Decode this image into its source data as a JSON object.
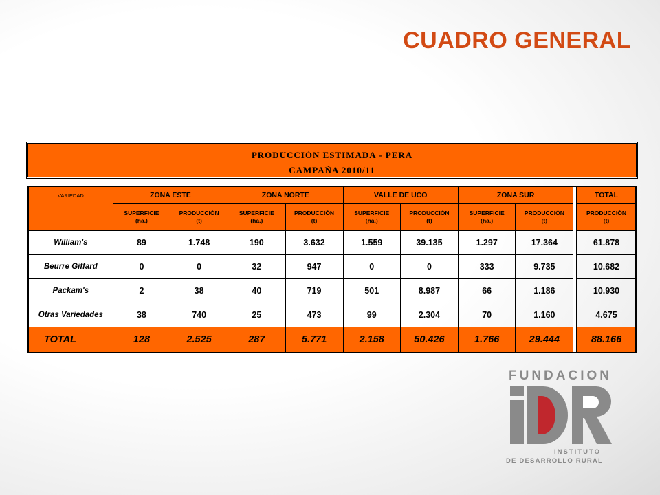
{
  "title": "CUADRO GENERAL",
  "banner": {
    "line1": "PRODUCCIÓN ESTIMADA - PERA",
    "line2": "CAMPAÑA 2010/11"
  },
  "table": {
    "variety_header": "VARIEDAD",
    "zones": [
      "ZONA ESTE",
      "ZONA NORTE",
      "VALLE DE UCO",
      "ZONA SUR"
    ],
    "total_header": "TOTAL",
    "sub_surface": [
      "SUPERFICIE",
      "(ha.)"
    ],
    "sub_production": [
      "PRODUCCIÓN",
      "(t)"
    ],
    "rows": [
      {
        "label": "William's",
        "values": [
          "89",
          "1.748",
          "190",
          "3.632",
          "1.559",
          "39.135",
          "1.297",
          "17.364"
        ],
        "total": "61.878"
      },
      {
        "label": "Beurre Giffard",
        "values": [
          "0",
          "0",
          "32",
          "947",
          "0",
          "0",
          "333",
          "9.735"
        ],
        "total": "10.682"
      },
      {
        "label": "Packam's",
        "values": [
          "2",
          "38",
          "40",
          "719",
          "501",
          "8.987",
          "66",
          "1.186"
        ],
        "total": "10.930"
      },
      {
        "label": "Otras Variedades",
        "values": [
          "38",
          "740",
          "25",
          "473",
          "99",
          "2.304",
          "70",
          "1.160"
        ],
        "total": "4.675"
      }
    ],
    "total_row": {
      "label": "TOTAL",
      "values": [
        "128",
        "2.525",
        "287",
        "5.771",
        "2.158",
        "50.426",
        "1.766",
        "29.444"
      ],
      "total": "88.166"
    }
  },
  "logo": {
    "top_text": "FUNDACION",
    "mark": "iDR",
    "line1": "INSTITUTO",
    "line2": "DE DESARROLLO RURAL"
  },
  "colors": {
    "accent": "#ff6600",
    "title": "#d24a14",
    "logo_red": "#c0272d",
    "logo_grey": "#8a8a8a"
  }
}
